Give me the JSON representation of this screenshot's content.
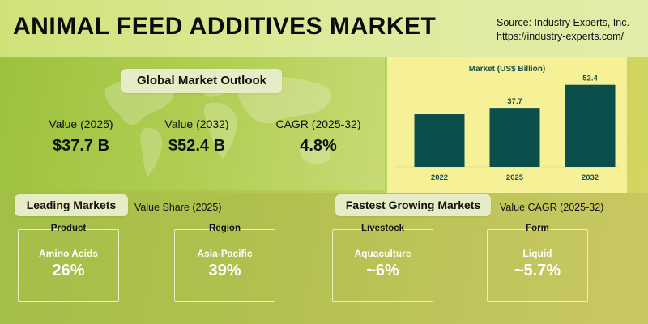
{
  "header": {
    "title": "ANIMAL FEED ADDITIVES MARKET",
    "source_line1": "Source: Industry Experts, Inc.",
    "source_line2": "https://industry-experts.com/"
  },
  "outlook": {
    "heading": "Global Market Outlook",
    "kpis": [
      {
        "label": "Value (2025)",
        "value": "$37.7 B"
      },
      {
        "label": "Value (2032)",
        "value": "$52.4 B"
      },
      {
        "label": "CAGR (2025-32)",
        "value": "4.8%"
      }
    ]
  },
  "chart_data": {
    "type": "bar",
    "title": "Market (US$ Billion)",
    "categories": [
      "2022",
      "2025",
      "2032"
    ],
    "values": [
      33.6,
      37.7,
      52.4
    ],
    "data_labels": [
      "",
      "37.7",
      "52.4"
    ],
    "ylim": [
      0,
      60
    ],
    "bar_color": "#0b4f4d"
  },
  "leading": {
    "heading": "Leading Markets",
    "subheading": "Value Share (2025)",
    "cards": [
      {
        "category": "Product",
        "name": "Amino Acids",
        "value": "26%"
      },
      {
        "category": "Region",
        "name": "Asia-Pacific",
        "value": "39%"
      }
    ]
  },
  "fastest": {
    "heading": "Fastest Growing Markets",
    "subheading": "Value CAGR (2025-32)",
    "cards": [
      {
        "category": "Livestock",
        "name": "Aquaculture",
        "value": "~6%"
      },
      {
        "category": "Form",
        "name": "Liquid",
        "value": "~5.7%"
      }
    ]
  }
}
